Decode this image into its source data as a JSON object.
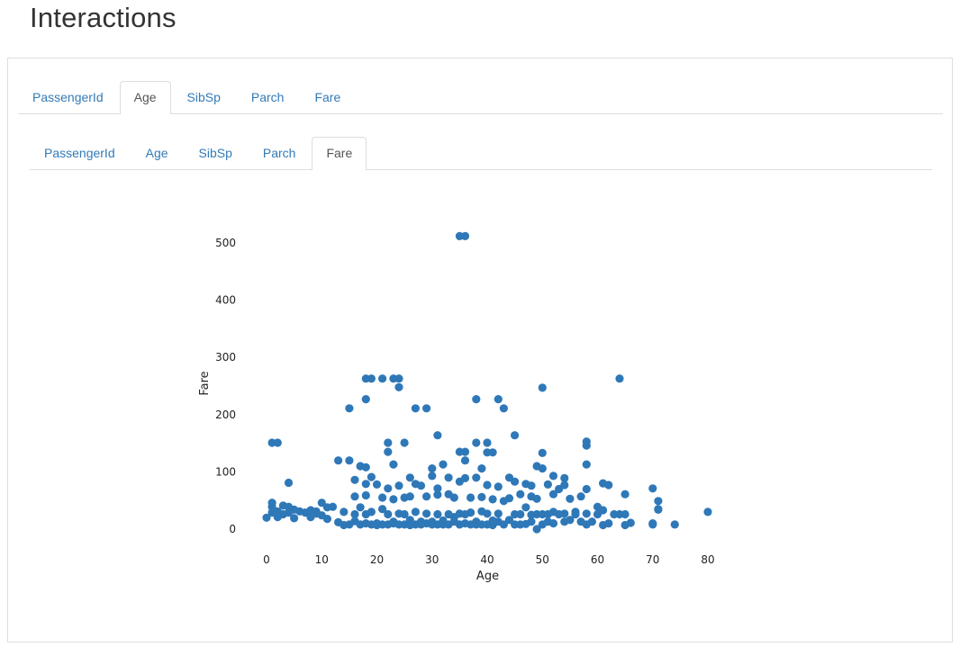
{
  "page": {
    "title": "Interactions"
  },
  "outer_tabs": [
    {
      "label": "PassengerId",
      "active": false
    },
    {
      "label": "Age",
      "active": true
    },
    {
      "label": "SibSp",
      "active": false
    },
    {
      "label": "Parch",
      "active": false
    },
    {
      "label": "Fare",
      "active": false
    }
  ],
  "inner_tabs": [
    {
      "label": "PassengerId",
      "active": false
    },
    {
      "label": "Age",
      "active": false
    },
    {
      "label": "SibSp",
      "active": false
    },
    {
      "label": "Parch",
      "active": false
    },
    {
      "label": "Fare",
      "active": true
    }
  ],
  "colors": {
    "marker": "#2f78b8",
    "tab_link": "#337ab7",
    "tab_active": "#555555"
  },
  "chart_data": {
    "type": "scatter",
    "title": "",
    "xlabel": "Age",
    "ylabel": "Fare",
    "xlim": [
      0,
      80
    ],
    "ylim": [
      0,
      512
    ],
    "xticks": [
      0,
      10,
      20,
      30,
      40,
      50,
      60,
      70,
      80
    ],
    "yticks": [
      0,
      100,
      200,
      300,
      400,
      500
    ],
    "grid": false,
    "points": [
      [
        35,
        512
      ],
      [
        36,
        512
      ],
      [
        18,
        263
      ],
      [
        19,
        263
      ],
      [
        21,
        263
      ],
      [
        23,
        263
      ],
      [
        24,
        263
      ],
      [
        64,
        263
      ],
      [
        24,
        248
      ],
      [
        50,
        247
      ],
      [
        18,
        227
      ],
      [
        38,
        227
      ],
      [
        42,
        227
      ],
      [
        15,
        211
      ],
      [
        27,
        211
      ],
      [
        29,
        211
      ],
      [
        43,
        211
      ],
      [
        31,
        164
      ],
      [
        45,
        164
      ],
      [
        1,
        151
      ],
      [
        2,
        151
      ],
      [
        22,
        151
      ],
      [
        25,
        151
      ],
      [
        38,
        151
      ],
      [
        40,
        151
      ],
      [
        58,
        153
      ],
      [
        58,
        146
      ],
      [
        22,
        135
      ],
      [
        35,
        135
      ],
      [
        36,
        135
      ],
      [
        40,
        134
      ],
      [
        41,
        134
      ],
      [
        50,
        133
      ],
      [
        13,
        120
      ],
      [
        15,
        120
      ],
      [
        36,
        120
      ],
      [
        32,
        113
      ],
      [
        23,
        113
      ],
      [
        58,
        113
      ],
      [
        17,
        110
      ],
      [
        18,
        108
      ],
      [
        30,
        106
      ],
      [
        39,
        106
      ],
      [
        49,
        110
      ],
      [
        50,
        106
      ],
      [
        4,
        81
      ],
      [
        16,
        86
      ],
      [
        19,
        91
      ],
      [
        26,
        90
      ],
      [
        30,
        93
      ],
      [
        33,
        90
      ],
      [
        36,
        89
      ],
      [
        38,
        90
      ],
      [
        44,
        90
      ],
      [
        45,
        83
      ],
      [
        47,
        79
      ],
      [
        52,
        93
      ],
      [
        54,
        89
      ],
      [
        54,
        77
      ],
      [
        61,
        80
      ],
      [
        62,
        77
      ],
      [
        70,
        71
      ],
      [
        18,
        79
      ],
      [
        20,
        78
      ],
      [
        22,
        71
      ],
      [
        24,
        76
      ],
      [
        27,
        79
      ],
      [
        28,
        76
      ],
      [
        31,
        71
      ],
      [
        35,
        83
      ],
      [
        40,
        77
      ],
      [
        42,
        74
      ],
      [
        48,
        76
      ],
      [
        51,
        78
      ],
      [
        53,
        70
      ],
      [
        58,
        70
      ],
      [
        16,
        57
      ],
      [
        18,
        59
      ],
      [
        21,
        55
      ],
      [
        23,
        52
      ],
      [
        25,
        55
      ],
      [
        26,
        57
      ],
      [
        29,
        57
      ],
      [
        31,
        60
      ],
      [
        33,
        61
      ],
      [
        34,
        55
      ],
      [
        37,
        55
      ],
      [
        39,
        56
      ],
      [
        41,
        52
      ],
      [
        43,
        49
      ],
      [
        44,
        54
      ],
      [
        46,
        61
      ],
      [
        48,
        57
      ],
      [
        49,
        53
      ],
      [
        52,
        61
      ],
      [
        55,
        53
      ],
      [
        57,
        57
      ],
      [
        65,
        61
      ],
      [
        71,
        49
      ],
      [
        0,
        20
      ],
      [
        1,
        46
      ],
      [
        1,
        39
      ],
      [
        1,
        29
      ],
      [
        2,
        31
      ],
      [
        2,
        21
      ],
      [
        3,
        41
      ],
      [
        3,
        26
      ],
      [
        4,
        39
      ],
      [
        4,
        29
      ],
      [
        5,
        19
      ],
      [
        5,
        34
      ],
      [
        6,
        31
      ],
      [
        7,
        29
      ],
      [
        8,
        21
      ],
      [
        8,
        33
      ],
      [
        9,
        27
      ],
      [
        9,
        31
      ],
      [
        10,
        24
      ],
      [
        10,
        46
      ],
      [
        11,
        38
      ],
      [
        11,
        18
      ],
      [
        12,
        39
      ],
      [
        13,
        12
      ],
      [
        14,
        7
      ],
      [
        14,
        30
      ],
      [
        15,
        8
      ],
      [
        16,
        14
      ],
      [
        16,
        26
      ],
      [
        17,
        8
      ],
      [
        17,
        38
      ],
      [
        18,
        10
      ],
      [
        18,
        26
      ],
      [
        19,
        8
      ],
      [
        19,
        30
      ],
      [
        20,
        7
      ],
      [
        20,
        10
      ],
      [
        21,
        8
      ],
      [
        21,
        35
      ],
      [
        22,
        8
      ],
      [
        22,
        26
      ],
      [
        23,
        10
      ],
      [
        23,
        13
      ],
      [
        24,
        8
      ],
      [
        24,
        27
      ],
      [
        25,
        8
      ],
      [
        25,
        26
      ],
      [
        26,
        7
      ],
      [
        26,
        16
      ],
      [
        27,
        8
      ],
      [
        27,
        30
      ],
      [
        28,
        8
      ],
      [
        28,
        13
      ],
      [
        29,
        10
      ],
      [
        29,
        27
      ],
      [
        30,
        8
      ],
      [
        30,
        13
      ],
      [
        31,
        8
      ],
      [
        31,
        26
      ],
      [
        32,
        8
      ],
      [
        32,
        15
      ],
      [
        33,
        8
      ],
      [
        33,
        26
      ],
      [
        34,
        13
      ],
      [
        34,
        21
      ],
      [
        35,
        8
      ],
      [
        35,
        27
      ],
      [
        36,
        10
      ],
      [
        36,
        26
      ],
      [
        37,
        8
      ],
      [
        37,
        29
      ],
      [
        38,
        8
      ],
      [
        38,
        13
      ],
      [
        39,
        8
      ],
      [
        39,
        31
      ],
      [
        40,
        8
      ],
      [
        40,
        27
      ],
      [
        41,
        7
      ],
      [
        41,
        15
      ],
      [
        42,
        13
      ],
      [
        42,
        27
      ],
      [
        43,
        8
      ],
      [
        44,
        16
      ],
      [
        45,
        8
      ],
      [
        45,
        26
      ],
      [
        46,
        8
      ],
      [
        46,
        26
      ],
      [
        47,
        9
      ],
      [
        47,
        38
      ],
      [
        48,
        13
      ],
      [
        48,
        25
      ],
      [
        49,
        0
      ],
      [
        49,
        26
      ],
      [
        50,
        8
      ],
      [
        50,
        26
      ],
      [
        51,
        13
      ],
      [
        51,
        26
      ],
      [
        52,
        10
      ],
      [
        52,
        30
      ],
      [
        53,
        26
      ],
      [
        54,
        13
      ],
      [
        54,
        27
      ],
      [
        55,
        16
      ],
      [
        56,
        26
      ],
      [
        56,
        30
      ],
      [
        57,
        13
      ],
      [
        58,
        27
      ],
      [
        58,
        8
      ],
      [
        59,
        13
      ],
      [
        60,
        26
      ],
      [
        60,
        39
      ],
      [
        61,
        33
      ],
      [
        61,
        7
      ],
      [
        62,
        10
      ],
      [
        63,
        26
      ],
      [
        64,
        26
      ],
      [
        65,
        7
      ],
      [
        65,
        26
      ],
      [
        66,
        11
      ],
      [
        70,
        10
      ],
      [
        70,
        8
      ],
      [
        71,
        35
      ],
      [
        71,
        34
      ],
      [
        74,
        8
      ],
      [
        80,
        30
      ]
    ]
  }
}
